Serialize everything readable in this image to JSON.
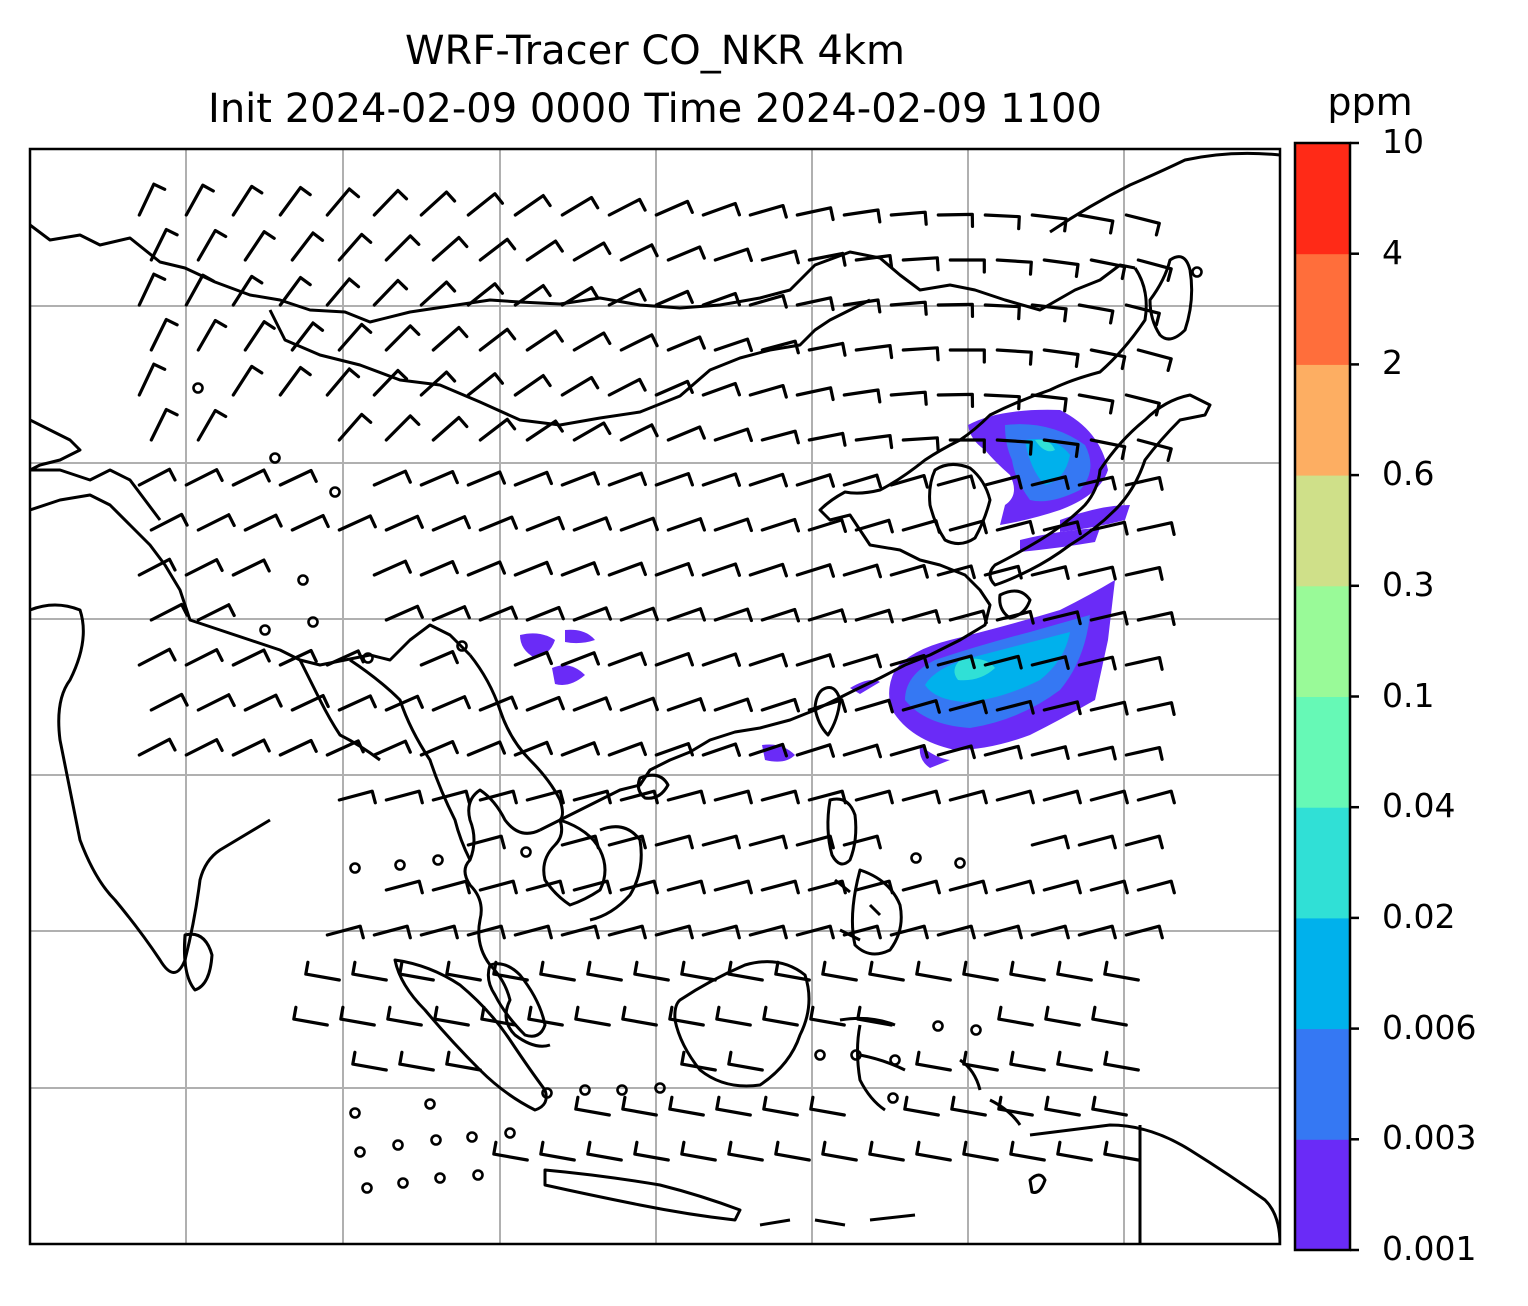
{
  "title": {
    "line1": "WRF-Tracer CO_NKR 4km",
    "line2": "Init 2024-02-09 0000 Time 2024-02-09 1100"
  },
  "colorbar": {
    "unit": "ppm",
    "levels": [
      "0.001",
      "0.003",
      "0.006",
      "0.02",
      "0.04",
      "0.1",
      "0.3",
      "0.6",
      "2",
      "4",
      "10"
    ],
    "colors": [
      "#6a2bf7",
      "#3578f3",
      "#00b1ec",
      "#30e0d6",
      "#66f9b6",
      "#99fa98",
      "#cfe089",
      "#fdae62",
      "#ff6e3b",
      "#ff2a17"
    ]
  },
  "map": {
    "coastline_color": "#000000",
    "gridline_color": "#b0b0b0",
    "plumes": [
      {
        "region": "Korean Peninsula / Sea of Japan",
        "max_level": "0.04"
      },
      {
        "region": "East China Sea / Taiwan",
        "max_level": "0.04"
      },
      {
        "region": "Southwest China",
        "max_level": "0.001"
      },
      {
        "region": "South China Sea near Hainan",
        "max_level": "0.001"
      }
    ],
    "wind_barbs": "north-westerly over China, westerly over Indonesia, calm circles near equator"
  }
}
